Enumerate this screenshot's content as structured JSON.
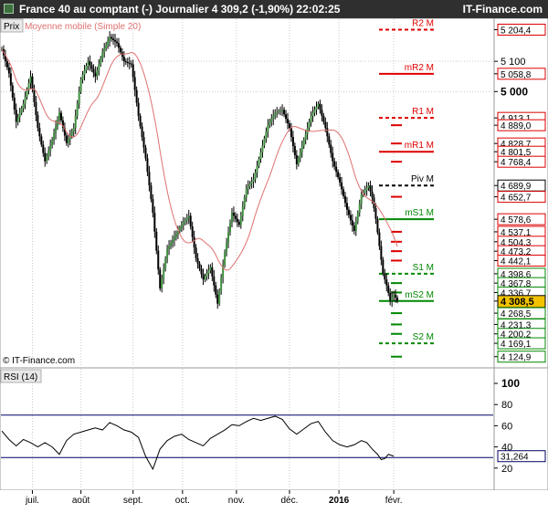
{
  "header": {
    "title": "France 40 au comptant (-)   Journalier   4 309,2 (-1,90%)   22:02:25",
    "site": "IT-Finance.com"
  },
  "chart_data": [
    {
      "type": "candlestick",
      "panel": "price",
      "legend": {
        "prix": "Prix",
        "ma": "Moyenne mobile (Simple 20)"
      },
      "copyright": "© IT-Finance.com",
      "x_ticks": [
        {
          "label": "juil.",
          "x": 34
        },
        {
          "label": "août",
          "x": 88
        },
        {
          "label": "sept.",
          "x": 146
        },
        {
          "label": "oct.",
          "x": 201
        },
        {
          "label": "nov.",
          "x": 261
        },
        {
          "label": "déc.",
          "x": 320
        },
        {
          "label": "2016",
          "x": 375
        },
        {
          "label": "févr.",
          "x": 436
        }
      ],
      "x_range": [
        0,
        445
      ],
      "ylim": [
        4100,
        5230
      ],
      "y_ticks": [
        {
          "label": "5 204,4",
          "value": 5204.4,
          "style": "red"
        },
        {
          "label": "5 100",
          "value": 5100,
          "style": "plain"
        },
        {
          "label": "5 058,8",
          "value": 5058.8,
          "style": "red"
        },
        {
          "label": "5 000",
          "value": 5000,
          "style": "bold"
        },
        {
          "label": "4 913,1",
          "value": 4913.1,
          "style": "red"
        },
        {
          "label": "4 889,0",
          "value": 4889.0,
          "style": "red"
        },
        {
          "label": "4 828,7",
          "value": 4828.7,
          "style": "red"
        },
        {
          "label": "4 801,5",
          "value": 4801.5,
          "style": "red"
        },
        {
          "label": "4 768,4",
          "value": 4768.4,
          "style": "red"
        },
        {
          "label": "4 689,9",
          "value": 4689.9,
          "style": "black"
        },
        {
          "label": "4 652,7",
          "value": 4652.7,
          "style": "red"
        },
        {
          "label": "4 578,6",
          "value": 4578.6,
          "style": "red"
        },
        {
          "label": "4 537,1",
          "value": 4537.1,
          "style": "red"
        },
        {
          "label": "4 504,3",
          "value": 4504.3,
          "style": "red"
        },
        {
          "label": "4 473,2",
          "value": 4473.2,
          "style": "red"
        },
        {
          "label": "4 442,1",
          "value": 4442.1,
          "style": "red"
        },
        {
          "label": "4 398,6",
          "value": 4398.6,
          "style": "green"
        },
        {
          "label": "4 367,8",
          "value": 4367.8,
          "style": "green"
        },
        {
          "label": "4 336,7",
          "value": 4336.7,
          "style": "green"
        },
        {
          "label": "4 308,5",
          "value": 4308.5,
          "style": "current"
        },
        {
          "label": "4 268,5",
          "value": 4268.5,
          "style": "green"
        },
        {
          "label": "4 231,3",
          "value": 4231.3,
          "style": "green"
        },
        {
          "label": "4 200,2",
          "value": 4200.2,
          "style": "green"
        },
        {
          "label": "4 169,1",
          "value": 4169.1,
          "style": "green"
        },
        {
          "label": "4 124,9",
          "value": 4124.9,
          "style": "green"
        }
      ],
      "pivot_levels": [
        {
          "label": "R2 M",
          "value": 5204.4,
          "color": "#dd0000"
        },
        {
          "label": "mR2 M",
          "value": 5058.8,
          "color": "#dd0000"
        },
        {
          "label": "R1 M",
          "value": 4913.1,
          "color": "#dd0000"
        },
        {
          "label": "mR1 M",
          "value": 4801.5,
          "color": "#dd0000"
        },
        {
          "label": "Piv M",
          "value": 4689.9,
          "color": "#000000"
        },
        {
          "label": "mS1 M",
          "value": 4578.6,
          "color": "#008800"
        },
        {
          "label": "S1 M",
          "value": 4398.6,
          "color": "#008800"
        },
        {
          "label": "mS2 M",
          "value": 4308.5,
          "color": "#008800"
        },
        {
          "label": "S2 M",
          "value": 4169.1,
          "color": "#008800"
        }
      ],
      "forecast_marks": [
        {
          "value": 4889.0,
          "color": "#dd0000"
        },
        {
          "value": 4828.7,
          "color": "#dd0000"
        },
        {
          "value": 4768.4,
          "color": "#dd0000"
        },
        {
          "value": 4652.7,
          "color": "#dd0000"
        },
        {
          "value": 4537.1,
          "color": "#dd0000"
        },
        {
          "value": 4504.3,
          "color": "#dd0000"
        },
        {
          "value": 4473.2,
          "color": "#dd0000"
        },
        {
          "value": 4442.1,
          "color": "#dd0000"
        },
        {
          "value": 4367.8,
          "color": "#008800"
        },
        {
          "value": 4336.7,
          "color": "#008800"
        },
        {
          "value": 4268.5,
          "color": "#008800"
        },
        {
          "value": 4231.3,
          "color": "#008800"
        },
        {
          "value": 4200.2,
          "color": "#008800"
        },
        {
          "value": 4124.9,
          "color": "#008800"
        }
      ],
      "last_price": 4309.2,
      "close_path": [
        [
          0,
          5140
        ],
        [
          8,
          5060
        ],
        [
          16,
          4900
        ],
        [
          24,
          4960
        ],
        [
          32,
          5050
        ],
        [
          40,
          4880
        ],
        [
          48,
          4770
        ],
        [
          56,
          4840
        ],
        [
          64,
          4930
        ],
        [
          72,
          4830
        ],
        [
          80,
          4880
        ],
        [
          88,
          5040
        ],
        [
          96,
          5100
        ],
        [
          104,
          5050
        ],
        [
          112,
          5130
        ],
        [
          120,
          5180
        ],
        [
          128,
          5160
        ],
        [
          136,
          5100
        ],
        [
          144,
          5090
        ],
        [
          152,
          4920
        ],
        [
          160,
          4780
        ],
        [
          168,
          4600
        ],
        [
          176,
          4350
        ],
        [
          184,
          4480
        ],
        [
          192,
          4520
        ],
        [
          200,
          4560
        ],
        [
          208,
          4590
        ],
        [
          216,
          4450
        ],
        [
          224,
          4380
        ],
        [
          232,
          4420
        ],
        [
          240,
          4300
        ],
        [
          248,
          4470
        ],
        [
          256,
          4600
        ],
        [
          264,
          4560
        ],
        [
          272,
          4680
        ],
        [
          280,
          4710
        ],
        [
          288,
          4800
        ],
        [
          296,
          4890
        ],
        [
          304,
          4930
        ],
        [
          312,
          4940
        ],
        [
          320,
          4880
        ],
        [
          328,
          4760
        ],
        [
          336,
          4840
        ],
        [
          344,
          4920
        ],
        [
          352,
          4960
        ],
        [
          360,
          4880
        ],
        [
          368,
          4770
        ],
        [
          376,
          4700
        ],
        [
          384,
          4610
        ],
        [
          392,
          4540
        ],
        [
          400,
          4660
        ],
        [
          408,
          4690
        ],
        [
          412,
          4650
        ],
        [
          416,
          4580
        ],
        [
          420,
          4490
        ],
        [
          424,
          4400
        ],
        [
          428,
          4360
        ],
        [
          432,
          4310
        ],
        [
          436,
          4330
        ],
        [
          440,
          4309.2
        ]
      ]
    },
    {
      "type": "line",
      "panel": "rsi",
      "legend": "RSI (14)",
      "ylim": [
        0,
        100
      ],
      "y_ticks": [
        {
          "label": "100",
          "value": 100,
          "bold": true
        },
        {
          "label": "80",
          "value": 80
        },
        {
          "label": "60",
          "value": 60
        },
        {
          "label": "40",
          "value": 40
        },
        {
          "label": "20",
          "value": 20
        }
      ],
      "levels": [
        70,
        30
      ],
      "last_value_label": "31,264",
      "last_value": 31.264,
      "values_path": [
        [
          0,
          55
        ],
        [
          8,
          47
        ],
        [
          16,
          41
        ],
        [
          24,
          47
        ],
        [
          32,
          44
        ],
        [
          40,
          40
        ],
        [
          48,
          44
        ],
        [
          56,
          40
        ],
        [
          64,
          33
        ],
        [
          72,
          46
        ],
        [
          80,
          52
        ],
        [
          88,
          54
        ],
        [
          96,
          56
        ],
        [
          104,
          58
        ],
        [
          112,
          56
        ],
        [
          120,
          63
        ],
        [
          128,
          60
        ],
        [
          136,
          56
        ],
        [
          144,
          54
        ],
        [
          152,
          49
        ],
        [
          160,
          31
        ],
        [
          168,
          19
        ],
        [
          176,
          38
        ],
        [
          184,
          46
        ],
        [
          192,
          50
        ],
        [
          200,
          52
        ],
        [
          208,
          47
        ],
        [
          216,
          44
        ],
        [
          224,
          41
        ],
        [
          232,
          48
        ],
        [
          240,
          52
        ],
        [
          248,
          56
        ],
        [
          256,
          61
        ],
        [
          264,
          60
        ],
        [
          272,
          64
        ],
        [
          280,
          67
        ],
        [
          288,
          65
        ],
        [
          296,
          67
        ],
        [
          304,
          69
        ],
        [
          312,
          66
        ],
        [
          320,
          57
        ],
        [
          328,
          52
        ],
        [
          336,
          57
        ],
        [
          344,
          62
        ],
        [
          352,
          64
        ],
        [
          360,
          54
        ],
        [
          368,
          46
        ],
        [
          376,
          42
        ],
        [
          384,
          40
        ],
        [
          392,
          42
        ],
        [
          400,
          46
        ],
        [
          406,
          44
        ],
        [
          412,
          38
        ],
        [
          418,
          33
        ],
        [
          422,
          28
        ],
        [
          426,
          29
        ],
        [
          430,
          33
        ],
        [
          436,
          31.264
        ]
      ]
    }
  ]
}
